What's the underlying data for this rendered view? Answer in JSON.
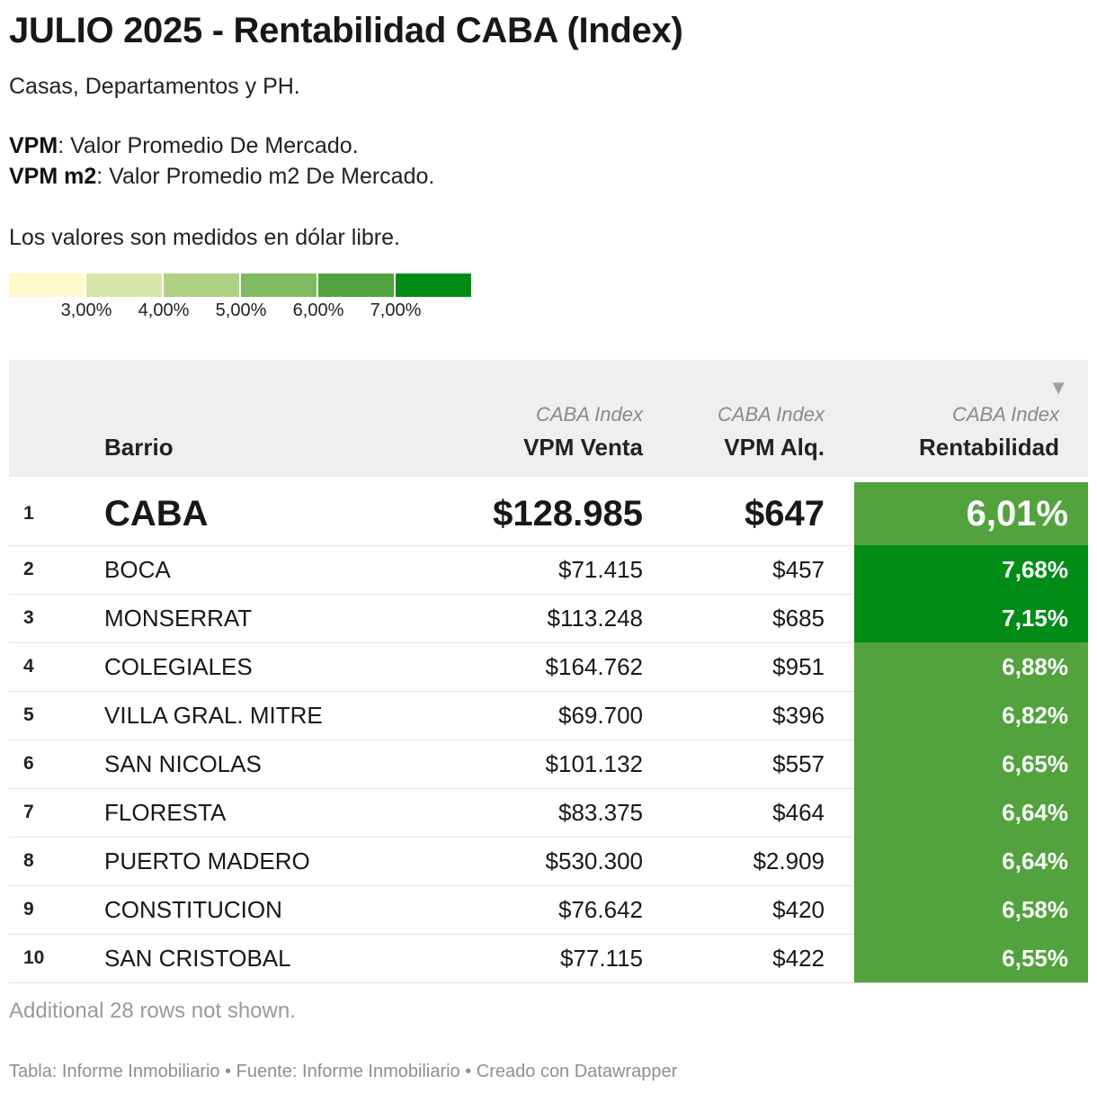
{
  "title": "JULIO 2025 - Rentabilidad CABA (Index)",
  "description": {
    "line1": "Casas, Departamentos y PH.",
    "vpm_key": "VPM",
    "vpm_text": ": Valor Promedio De Mercado.",
    "vpm_m2_key": "VPM m2",
    "vpm_m2_text": ": Valor Promedio m2 De Mercado.",
    "line4": "Los valores son medidos en dólar libre."
  },
  "legend": {
    "colors": [
      "#fff9cc",
      "#d6e6a8",
      "#aed184",
      "#80ba60",
      "#52a33e",
      "#008c17"
    ],
    "ticks": [
      "3,00%",
      "4,00%",
      "5,00%",
      "6,00%",
      "7,00%"
    ]
  },
  "table": {
    "headers": {
      "barrio": "Barrio",
      "venta_sub": "CABA Index",
      "venta": "VPM Venta",
      "alq_sub": "CABA Index",
      "alq": "VPM Alq.",
      "rent_sub": "CABA Index",
      "rent": "Rentabilidad",
      "sort_icon": "▼"
    },
    "rows": [
      {
        "rank": "1",
        "barrio": "CABA",
        "venta": "$128.985",
        "alq": "$647",
        "rent": "6,01%",
        "color": "#52a33e"
      },
      {
        "rank": "2",
        "barrio": "BOCA",
        "venta": "$71.415",
        "alq": "$457",
        "rent": "7,68%",
        "color": "#008c17"
      },
      {
        "rank": "3",
        "barrio": "MONSERRAT",
        "venta": "$113.248",
        "alq": "$685",
        "rent": "7,15%",
        "color": "#008c17"
      },
      {
        "rank": "4",
        "barrio": "COLEGIALES",
        "venta": "$164.762",
        "alq": "$951",
        "rent": "6,88%",
        "color": "#52a33e"
      },
      {
        "rank": "5",
        "barrio": "VILLA GRAL. MITRE",
        "venta": "$69.700",
        "alq": "$396",
        "rent": "6,82%",
        "color": "#52a33e"
      },
      {
        "rank": "6",
        "barrio": "SAN NICOLAS",
        "venta": "$101.132",
        "alq": "$557",
        "rent": "6,65%",
        "color": "#52a33e"
      },
      {
        "rank": "7",
        "barrio": "FLORESTA",
        "venta": "$83.375",
        "alq": "$464",
        "rent": "6,64%",
        "color": "#52a33e"
      },
      {
        "rank": "8",
        "barrio": "PUERTO MADERO",
        "venta": "$530.300",
        "alq": "$2.909",
        "rent": "6,64%",
        "color": "#52a33e"
      },
      {
        "rank": "9",
        "barrio": "CONSTITUCION",
        "venta": "$76.642",
        "alq": "$420",
        "rent": "6,58%",
        "color": "#52a33e"
      },
      {
        "rank": "10",
        "barrio": "SAN CRISTOBAL",
        "venta": "$77.115",
        "alq": "$422",
        "rent": "6,55%",
        "color": "#52a33e"
      }
    ]
  },
  "note": "Additional 28 rows not shown.",
  "footer": "Tabla: Informe Inmobiliario • Fuente: Informe Inmobiliario • Creado con Datawrapper"
}
